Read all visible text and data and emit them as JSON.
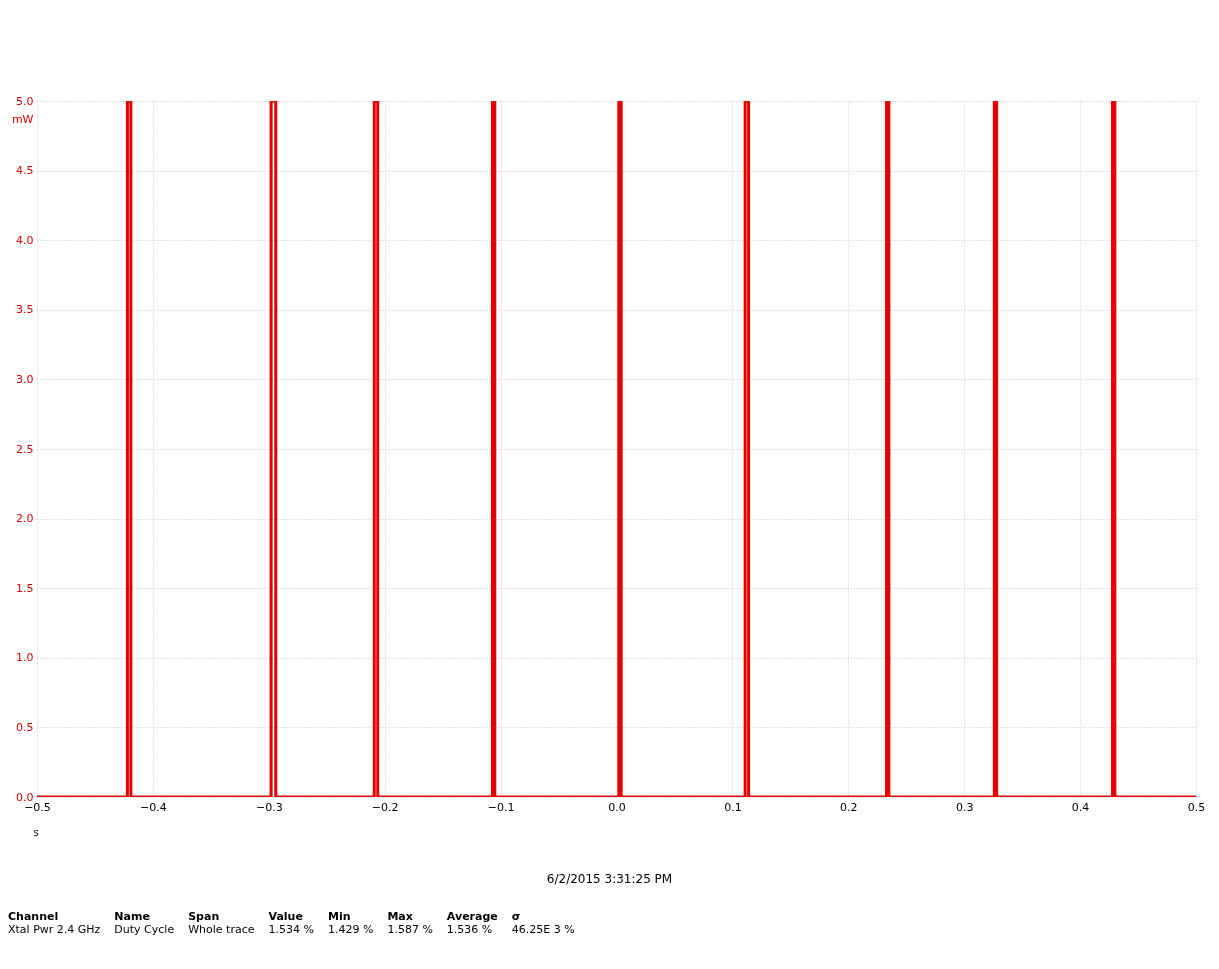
{
  "chart_data": {
    "type": "line",
    "xlabel": "s",
    "ylabel": "mW",
    "annotations": [
      "6/2/2015 3:31:25 PM",
      "Channel",
      "Name",
      "Span",
      "Value",
      "Min",
      "Max",
      "Average",
      "σ",
      "Xtal Pwr 2.4 GHz",
      "Duty Cycle",
      "Whole trace",
      "1.534 %",
      "1.429 %",
      "1.587 %",
      "1.536 %",
      "46.25E 3 %"
    ],
    "x": [
      -0.5,
      -0.422,
      -0.422,
      -0.419,
      -0.419,
      -0.298,
      -0.298,
      -0.294,
      -0.294,
      -0.209,
      -0.209,
      -0.206,
      -0.206,
      -0.107,
      -0.107,
      -0.105,
      -0.105,
      0.002,
      0.002,
      0.004,
      0.004,
      0.111,
      0.111,
      0.114,
      0.114,
      0.233,
      0.233,
      0.235,
      0.235,
      0.326,
      0.326,
      0.328,
      0.328,
      0.428,
      0.428,
      0.43,
      0.43,
      0.5
    ],
    "series": [
      {
        "color": "#e60000",
        "values": [
          0,
          0,
          5,
          5,
          0,
          0,
          5,
          5,
          0,
          0,
          5,
          5,
          0,
          0,
          5,
          5,
          0,
          0,
          5,
          5,
          0,
          0,
          5,
          5,
          0,
          0,
          5,
          5,
          0,
          0,
          5,
          5,
          0,
          0,
          5,
          5,
          0,
          0
        ]
      }
    ],
    "xlim": [
      -0.5,
      0.5
    ],
    "xticks": [
      -0.5,
      -0.4,
      -0.3,
      -0.2,
      -0.1,
      {
        "value": 0,
        "label": "0.0"
      },
      0.1,
      0.2,
      0.3,
      0.4,
      0.5
    ],
    "ylim": [
      0,
      5
    ],
    "yticks": [
      {
        "value": 0,
        "label": "0.0"
      },
      0.5,
      {
        "value": 1,
        "label": "1.0"
      },
      1.5,
      {
        "value": 2,
        "label": "2.0"
      },
      2.5,
      {
        "value": 3,
        "label": "3.0"
      },
      3.5,
      {
        "value": 4,
        "label": "4.0"
      },
      4.5,
      {
        "value": 5,
        "label": "5.0"
      }
    ],
    "grid": true,
    "marker": "none",
    "line_style": "solid",
    "legend": false
  }
}
